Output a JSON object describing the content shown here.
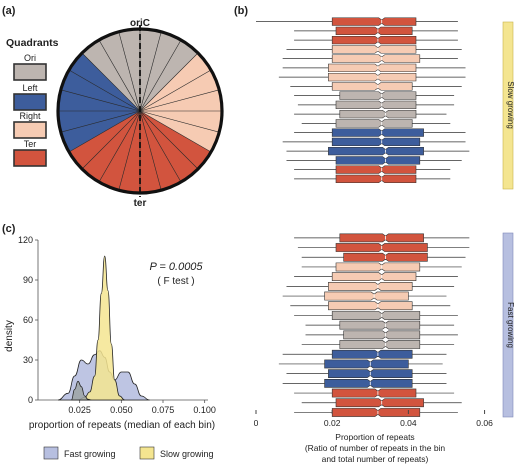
{
  "colors": {
    "ori": "#bdb5b0",
    "left": "#3d5d9c",
    "right": "#f6cbb3",
    "ter": "#d2543e",
    "fast": "#b7bfe0",
    "slow": "#f4e590",
    "grey_fill": "#9ea3a5"
  },
  "panel_a": {
    "panel_label": "(a)",
    "legend_title": "Quadrants",
    "legend_items": [
      {
        "key": "ori",
        "label": "Ori"
      },
      {
        "key": "left",
        "label": "Left"
      },
      {
        "key": "right",
        "label": "Right"
      },
      {
        "key": "ter",
        "label": "Ter"
      }
    ],
    "top_label": "oriC",
    "bottom_label": "ter"
  },
  "panel_b": {
    "panel_label": "(b)",
    "slow_label": "Slow growing",
    "fast_label": "Fast growing",
    "x_ticks": [
      "0",
      "0.02",
      "0.04",
      "0.06"
    ],
    "xlabel_line1": "Proportion of repeats",
    "xlabel_line2": "(Ratio of number of repeats in the bin",
    "xlabel_line3": "and total number of repeats)"
  },
  "panel_c": {
    "panel_label": "(c)",
    "p_value": "P = 0.0005",
    "test_label": "( F test )",
    "y_label": "density",
    "y_ticks": [
      "0",
      "30",
      "60",
      "90",
      "120"
    ],
    "x_ticks": [
      "0.025",
      "0.050",
      "0.075",
      "0.100"
    ],
    "x_label": "proportion of repeats (median of each bin)",
    "legend": [
      {
        "key": "fast",
        "label": "Fast growing"
      },
      {
        "key": "slow",
        "label": "Slow growing"
      }
    ]
  },
  "chart_data": [
    {
      "type": "pie",
      "categories": [
        "Ori",
        "Left",
        "Ter",
        "Ter",
        "Right",
        "Ori"
      ],
      "values": [
        3,
        5,
        4,
        4,
        5,
        3
      ],
      "spokes": 24,
      "labels": {
        "top": "oriC",
        "bottom": "ter"
      }
    },
    {
      "type": "box",
      "orientation": "horizontal",
      "group": "Slow growing",
      "xlim": [
        0,
        0.063
      ],
      "boxes": [
        {
          "quadrant": "ter",
          "q1": 0.02,
          "median": 0.033,
          "q3": 0.042,
          "min": 0.0,
          "max": 0.053
        },
        {
          "quadrant": "ter",
          "q1": 0.021,
          "median": 0.032,
          "q3": 0.041,
          "min": 0.01,
          "max": 0.053
        },
        {
          "quadrant": "ter",
          "q1": 0.02,
          "median": 0.032,
          "q3": 0.042,
          "min": 0.01,
          "max": 0.053
        },
        {
          "quadrant": "right",
          "q1": 0.02,
          "median": 0.032,
          "q3": 0.042,
          "min": 0.008,
          "max": 0.054
        },
        {
          "quadrant": "right",
          "q1": 0.02,
          "median": 0.033,
          "q3": 0.043,
          "min": 0.007,
          "max": 0.053
        },
        {
          "quadrant": "right",
          "q1": 0.019,
          "median": 0.032,
          "q3": 0.042,
          "min": 0.007,
          "max": 0.055
        },
        {
          "quadrant": "right",
          "q1": 0.019,
          "median": 0.032,
          "q3": 0.042,
          "min": 0.006,
          "max": 0.055
        },
        {
          "quadrant": "right",
          "q1": 0.02,
          "median": 0.032,
          "q3": 0.041,
          "min": 0.009,
          "max": 0.054
        },
        {
          "quadrant": "ori",
          "q1": 0.022,
          "median": 0.033,
          "q3": 0.042,
          "min": 0.01,
          "max": 0.052
        },
        {
          "quadrant": "ori",
          "q1": 0.021,
          "median": 0.033,
          "q3": 0.042,
          "min": 0.011,
          "max": 0.052
        },
        {
          "quadrant": "ori",
          "q1": 0.022,
          "median": 0.034,
          "q3": 0.042,
          "min": 0.01,
          "max": 0.05
        },
        {
          "quadrant": "ori",
          "q1": 0.021,
          "median": 0.033,
          "q3": 0.041,
          "min": 0.012,
          "max": 0.051
        },
        {
          "quadrant": "left",
          "q1": 0.02,
          "median": 0.033,
          "q3": 0.044,
          "min": 0.01,
          "max": 0.055
        },
        {
          "quadrant": "left",
          "q1": 0.02,
          "median": 0.033,
          "q3": 0.043,
          "min": 0.007,
          "max": 0.055
        },
        {
          "quadrant": "left",
          "q1": 0.019,
          "median": 0.034,
          "q3": 0.044,
          "min": 0.008,
          "max": 0.056
        },
        {
          "quadrant": "left",
          "q1": 0.021,
          "median": 0.034,
          "q3": 0.043,
          "min": 0.008,
          "max": 0.054
        },
        {
          "quadrant": "ter",
          "q1": 0.021,
          "median": 0.033,
          "q3": 0.042,
          "min": 0.01,
          "max": 0.051
        },
        {
          "quadrant": "ter",
          "q1": 0.021,
          "median": 0.033,
          "q3": 0.042,
          "min": 0.01,
          "max": 0.051
        }
      ]
    },
    {
      "type": "box",
      "orientation": "horizontal",
      "group": "Fast growing",
      "xlim": [
        0,
        0.063
      ],
      "x_ticks": [
        0,
        0.02,
        0.04,
        0.06
      ],
      "boxes": [
        {
          "quadrant": "ter",
          "q1": 0.022,
          "median": 0.034,
          "q3": 0.044,
          "min": 0.01,
          "max": 0.056
        },
        {
          "quadrant": "ter",
          "q1": 0.021,
          "median": 0.033,
          "q3": 0.045,
          "min": 0.011,
          "max": 0.056
        },
        {
          "quadrant": "ter",
          "q1": 0.023,
          "median": 0.034,
          "q3": 0.045,
          "min": 0.012,
          "max": 0.055
        },
        {
          "quadrant": "right",
          "q1": 0.021,
          "median": 0.033,
          "q3": 0.043,
          "min": 0.012,
          "max": 0.054
        },
        {
          "quadrant": "right",
          "q1": 0.02,
          "median": 0.033,
          "q3": 0.042,
          "min": 0.01,
          "max": 0.053
        },
        {
          "quadrant": "right",
          "q1": 0.019,
          "median": 0.032,
          "q3": 0.041,
          "min": 0.008,
          "max": 0.052
        },
        {
          "quadrant": "right",
          "q1": 0.018,
          "median": 0.031,
          "q3": 0.04,
          "min": 0.007,
          "max": 0.05
        },
        {
          "quadrant": "right",
          "q1": 0.019,
          "median": 0.032,
          "q3": 0.041,
          "min": 0.009,
          "max": 0.051
        },
        {
          "quadrant": "ori",
          "q1": 0.02,
          "median": 0.033,
          "q3": 0.043,
          "min": 0.01,
          "max": 0.053
        },
        {
          "quadrant": "ori",
          "q1": 0.022,
          "median": 0.034,
          "q3": 0.043,
          "min": 0.013,
          "max": 0.052
        },
        {
          "quadrant": "ori",
          "q1": 0.023,
          "median": 0.034,
          "q3": 0.043,
          "min": 0.013,
          "max": 0.053
        },
        {
          "quadrant": "ori",
          "q1": 0.022,
          "median": 0.034,
          "q3": 0.043,
          "min": 0.012,
          "max": 0.052
        },
        {
          "quadrant": "left",
          "q1": 0.02,
          "median": 0.032,
          "q3": 0.041,
          "min": 0.007,
          "max": 0.05
        },
        {
          "quadrant": "left",
          "q1": 0.018,
          "median": 0.03,
          "q3": 0.04,
          "min": 0.006,
          "max": 0.049
        },
        {
          "quadrant": "left",
          "q1": 0.019,
          "median": 0.03,
          "q3": 0.041,
          "min": 0.008,
          "max": 0.05
        },
        {
          "quadrant": "left",
          "q1": 0.018,
          "median": 0.03,
          "q3": 0.041,
          "min": 0.007,
          "max": 0.05
        },
        {
          "quadrant": "ter",
          "q1": 0.02,
          "median": 0.032,
          "q3": 0.042,
          "min": 0.01,
          "max": 0.052
        },
        {
          "quadrant": "ter",
          "q1": 0.021,
          "median": 0.033,
          "q3": 0.044,
          "min": 0.012,
          "max": 0.054
        },
        {
          "quadrant": "ter",
          "q1": 0.02,
          "median": 0.032,
          "q3": 0.043,
          "min": 0.01,
          "max": 0.053
        }
      ]
    },
    {
      "type": "area",
      "title": "",
      "xlabel": "proportion of repeats (median of each bin)",
      "ylabel": "density",
      "xlim": [
        0.0,
        0.102
      ],
      "ylim": [
        0,
        120
      ],
      "x_ticks": [
        0.025,
        0.05,
        0.075,
        0.1
      ],
      "y_ticks": [
        0,
        30,
        60,
        90,
        120
      ],
      "annotation": "P = 0.0005 ( F test )",
      "legend_position": "bottom",
      "series": [
        {
          "name": "Fast growing",
          "key": "fast",
          "x": [
            0.012,
            0.018,
            0.022,
            0.026,
            0.03,
            0.034,
            0.037,
            0.04,
            0.043,
            0.046,
            0.05,
            0.054,
            0.058,
            0.062,
            0.067
          ],
          "y": [
            0,
            5,
            18,
            30,
            27,
            34,
            37,
            32,
            21,
            15,
            21,
            21,
            12,
            3,
            0
          ]
        },
        {
          "name": "Slow growing",
          "key": "slow",
          "x": [
            0.024,
            0.028,
            0.031,
            0.034,
            0.036,
            0.038,
            0.04,
            0.042,
            0.044,
            0.046,
            0.049,
            0.052
          ],
          "y": [
            0,
            2,
            6,
            18,
            45,
            80,
            108,
            82,
            42,
            15,
            3,
            0
          ]
        },
        {
          "name": "",
          "key": "grey",
          "x": [
            0.02,
            0.022,
            0.024,
            0.026,
            0.028,
            0.03,
            0.032
          ],
          "y": [
            0,
            8,
            14,
            10,
            3,
            0.5,
            0
          ]
        }
      ]
    }
  ]
}
